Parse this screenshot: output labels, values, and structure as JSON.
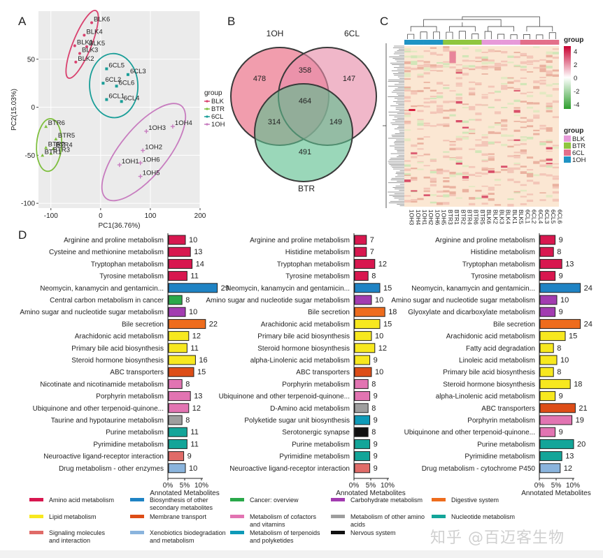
{
  "panel_labels": {
    "a": "A",
    "b": "B",
    "c": "C",
    "d": "D"
  },
  "chart_data": [
    {
      "type": "scatter",
      "panel": "A",
      "xlabel": "PC1(36.76%)",
      "ylabel": "PC2(15.03%)",
      "xlim": [
        -125,
        200
      ],
      "ylim": [
        -105,
        100
      ],
      "xticks": [
        -100,
        0,
        100,
        200
      ],
      "yticks": [
        -100,
        -50,
        0,
        50
      ],
      "legend_title": "group",
      "legend_position": "right",
      "series": [
        {
          "name": "BLK",
          "color": "#d9426f",
          "points": [
            {
              "label": "BLK6",
              "x": -18,
              "y": 88
            },
            {
              "label": "BLK4",
              "x": -33,
              "y": 75
            },
            {
              "label": "BLK1",
              "x": -52,
              "y": 64
            },
            {
              "label": "BLK5",
              "x": -28,
              "y": 63
            },
            {
              "label": "BLK3",
              "x": -42,
              "y": 56
            },
            {
              "label": "BLK2",
              "x": -50,
              "y": 47
            }
          ]
        },
        {
          "name": "BTR",
          "color": "#7ebf3e",
          "points": [
            {
              "label": "BTR6",
              "x": -110,
              "y": -20
            },
            {
              "label": "BTR5",
              "x": -90,
              "y": -33
            },
            {
              "label": "BTR2",
              "x": -110,
              "y": -42
            },
            {
              "label": "BTR4",
              "x": -95,
              "y": -43
            },
            {
              "label": "BTR3",
              "x": -100,
              "y": -48
            },
            {
              "label": "BTR1",
              "x": -117,
              "y": -50
            }
          ]
        },
        {
          "name": "6CL",
          "color": "#1a9e98",
          "points": [
            {
              "label": "6CL5",
              "x": 12,
              "y": 40
            },
            {
              "label": "6CL3",
              "x": 55,
              "y": 34
            },
            {
              "label": "6CL2",
              "x": 5,
              "y": 25
            },
            {
              "label": "6CL6",
              "x": 32,
              "y": 22
            },
            {
              "label": "6CL1",
              "x": 12,
              "y": 8
            },
            {
              "label": "6CL4",
              "x": 42,
              "y": 6
            }
          ]
        },
        {
          "name": "1OH",
          "color": "#c77cbf",
          "points": [
            {
              "label": "1OH4",
              "x": 145,
              "y": -20
            },
            {
              "label": "1OH3",
              "x": 92,
              "y": -25
            },
            {
              "label": "1OH2",
              "x": 85,
              "y": -45
            },
            {
              "label": "1OH6",
              "x": 80,
              "y": -58
            },
            {
              "label": "1OH1",
              "x": 38,
              "y": -60
            },
            {
              "label": "1OH5",
              "x": 80,
              "y": -72
            }
          ]
        }
      ]
    },
    {
      "type": "venn",
      "panel": "B",
      "sets": [
        {
          "name": "1OH",
          "color": "#e8617a"
        },
        {
          "name": "6CL",
          "color": "#e78aa8"
        },
        {
          "name": "BTR",
          "color": "#5cbf8e"
        }
      ],
      "regions": {
        "only_1OH": 478,
        "only_6CL": 147,
        "only_BTR": 491,
        "1OH_6CL": 358,
        "1OH_BTR": 314,
        "6CL_BTR": 149,
        "all": 464
      }
    },
    {
      "type": "heatmap",
      "panel": "C",
      "columns": [
        "1OH3",
        "1OH4",
        "1OH1",
        "1OH2",
        "1OH6",
        "1OH5",
        "BTR3",
        "BTR1",
        "BTR2",
        "BTR4",
        "BTR6",
        "BTR5",
        "BLK6",
        "BLK2",
        "BLK3",
        "BLK4",
        "BLK1",
        "BLK5",
        "6CL1",
        "6CL2",
        "6CL4",
        "6CL3",
        "6CL5",
        "6CL6"
      ],
      "scale_title": "group",
      "scale_ticks": [
        "4",
        "2",
        "0",
        "-2",
        "-4"
      ],
      "scale_colors": [
        "#c80030",
        "#ffffff",
        "#2e9e2e"
      ],
      "group_legend_title": "group",
      "groups": [
        {
          "name": "BLK",
          "color": "#e79ad9"
        },
        {
          "name": "BTR",
          "color": "#8fc63f"
        },
        {
          "name": "6CL",
          "color": "#e36f8a"
        },
        {
          "name": "1OH",
          "color": "#1f93c4"
        }
      ]
    },
    {
      "type": "bar",
      "panel": "D",
      "xlabel": "Annotated Metabolites",
      "xticks": [
        "0%",
        "5%",
        "10%"
      ],
      "categories_legend": [
        {
          "name": "Amino acid metabolism",
          "color": "#d8174f"
        },
        {
          "name": "Biosynthesis of other secondary metabolites",
          "color": "#1f83c4"
        },
        {
          "name": "Cancer: overview",
          "color": "#2aa84a"
        },
        {
          "name": "Carbohydrate metabolism",
          "color": "#a23cb0"
        },
        {
          "name": "Digestive system",
          "color": "#ee6c1d"
        },
        {
          "name": "Lipid metabolism",
          "color": "#f7e81f"
        },
        {
          "name": "Membrane transport",
          "color": "#dd4d17"
        },
        {
          "name": "Metabolism of cofactors and vitamins",
          "color": "#e274b2"
        },
        {
          "name": "Metabolism of other amino acids",
          "color": "#9e9e9e"
        },
        {
          "name": "Nucleotide metabolism",
          "color": "#13a599"
        },
        {
          "name": "Signaling molecules and interaction",
          "color": "#e06b68"
        },
        {
          "name": "Xenobiotics biodegradation and metabolism",
          "color": "#8ab4dd"
        },
        {
          "name": "Metabolism of terpenoids and polyketides",
          "color": "#0e9ab8"
        },
        {
          "name": "Nervous system",
          "color": "#111111"
        }
      ],
      "columns": [
        {
          "bars": [
            {
              "label": "Arginine and proline metabolism",
              "value": 10,
              "cat": 0
            },
            {
              "label": "Cysteine and methionine metabolism",
              "value": 13,
              "cat": 0
            },
            {
              "label": "Tryptophan metabolism",
              "value": 14,
              "cat": 0
            },
            {
              "label": "Tyrosine metabolism",
              "value": 11,
              "cat": 0
            },
            {
              "label": "Neomycin, kanamycin and gentamicin...",
              "value": 29,
              "cat": 1
            },
            {
              "label": "Central carbon metabolism in cancer",
              "value": 8,
              "cat": 2
            },
            {
              "label": "Amino sugar and nucleotide sugar metabolism",
              "value": 10,
              "cat": 3
            },
            {
              "label": "Bile secretion",
              "value": 22,
              "cat": 4
            },
            {
              "label": "Arachidonic acid metabolism",
              "value": 12,
              "cat": 5
            },
            {
              "label": "Primary bile acid biosynthesis",
              "value": 11,
              "cat": 5
            },
            {
              "label": "Steroid hormone biosynthesis",
              "value": 16,
              "cat": 5
            },
            {
              "label": "ABC transporters",
              "value": 15,
              "cat": 6
            },
            {
              "label": "Nicotinate and nicotinamide metabolism",
              "value": 8,
              "cat": 7
            },
            {
              "label": "Porphyrin metabolism",
              "value": 13,
              "cat": 7
            },
            {
              "label": "Ubiquinone and other terpenoid-quinone...",
              "value": 12,
              "cat": 7
            },
            {
              "label": "Taurine and hypotaurine metabolism",
              "value": 8,
              "cat": 8
            },
            {
              "label": "Purine metabolism",
              "value": 11,
              "cat": 9
            },
            {
              "label": "Pyrimidine metabolism",
              "value": 11,
              "cat": 9
            },
            {
              "label": "Neuroactive ligand-receptor interaction",
              "value": 9,
              "cat": 10
            },
            {
              "label": "Drug metabolism - other enzymes",
              "value": 10,
              "cat": 11
            }
          ]
        },
        {
          "bars": [
            {
              "label": "Arginine and proline metabolism",
              "value": 7,
              "cat": 0
            },
            {
              "label": "Histidine metabolism",
              "value": 7,
              "cat": 0
            },
            {
              "label": "Tryptophan metabolism",
              "value": 12,
              "cat": 0
            },
            {
              "label": "Tyrosine metabolism",
              "value": 8,
              "cat": 0
            },
            {
              "label": "Neomycin, kanamycin and gentamicin...",
              "value": 15,
              "cat": 1
            },
            {
              "label": "Amino sugar and nucleotide sugar metabolism",
              "value": 10,
              "cat": 3
            },
            {
              "label": "Bile secretion",
              "value": 18,
              "cat": 4
            },
            {
              "label": "Arachidonic acid metabolism",
              "value": 15,
              "cat": 5
            },
            {
              "label": "Primary bile acid biosynthesis",
              "value": 10,
              "cat": 5
            },
            {
              "label": "Steroid hormone biosynthesis",
              "value": 12,
              "cat": 5
            },
            {
              "label": "alpha-Linolenic acid metabolism",
              "value": 9,
              "cat": 5
            },
            {
              "label": "ABC transporters",
              "value": 10,
              "cat": 6
            },
            {
              "label": "Porphyrin metabolism",
              "value": 8,
              "cat": 7
            },
            {
              "label": "Ubiquinone and other terpenoid-quinone...",
              "value": 9,
              "cat": 7
            },
            {
              "label": "D-Amino acid metabolism",
              "value": 8,
              "cat": 8
            },
            {
              "label": "Polyketide sugar unit biosynthesis",
              "value": 9,
              "cat": 12
            },
            {
              "label": "Serotonergic synapse",
              "value": 8,
              "cat": 13
            },
            {
              "label": "Purine metabolism",
              "value": 9,
              "cat": 9
            },
            {
              "label": "Pyrimidine metabolism",
              "value": 9,
              "cat": 9
            },
            {
              "label": "Neuroactive ligand-receptor interaction",
              "value": 9,
              "cat": 10
            }
          ]
        },
        {
          "bars": [
            {
              "label": "Arginine and proline metabolism",
              "value": 9,
              "cat": 0
            },
            {
              "label": "Histidine metabolism",
              "value": 8,
              "cat": 0
            },
            {
              "label": "Tryptophan metabolism",
              "value": 13,
              "cat": 0
            },
            {
              "label": "Tyrosine metabolism",
              "value": 9,
              "cat": 0
            },
            {
              "label": "Neomycin, kanamycin and gentamicin...",
              "value": 24,
              "cat": 1
            },
            {
              "label": "Amino sugar and nucleotide sugar metabolism",
              "value": 10,
              "cat": 3
            },
            {
              "label": "Glyoxylate and dicarboxylate metabolism",
              "value": 9,
              "cat": 3
            },
            {
              "label": "Bile secretion",
              "value": 24,
              "cat": 4
            },
            {
              "label": "Arachidonic acid metabolism",
              "value": 15,
              "cat": 5
            },
            {
              "label": "Fatty acid degradation",
              "value": 8,
              "cat": 5
            },
            {
              "label": "Linoleic acid metabolism",
              "value": 10,
              "cat": 5
            },
            {
              "label": "Primary bile acid biosynthesis",
              "value": 8,
              "cat": 5
            },
            {
              "label": "Steroid hormone biosynthesis",
              "value": 18,
              "cat": 5
            },
            {
              "label": "alpha-Linolenic acid metabolism",
              "value": 9,
              "cat": 5
            },
            {
              "label": "ABC transporters",
              "value": 21,
              "cat": 6
            },
            {
              "label": "Porphyrin metabolism",
              "value": 19,
              "cat": 7
            },
            {
              "label": "Ubiquinone and other terpenoid-quinone...",
              "value": 9,
              "cat": 7
            },
            {
              "label": "Purine metabolism",
              "value": 20,
              "cat": 9
            },
            {
              "label": "Pyrimidine metabolism",
              "value": 13,
              "cat": 9
            },
            {
              "label": "Drug metabolism - cytochrome P450",
              "value": 12,
              "cat": 11
            }
          ]
        }
      ]
    }
  ],
  "watermark": "知乎 @百迈客生物"
}
